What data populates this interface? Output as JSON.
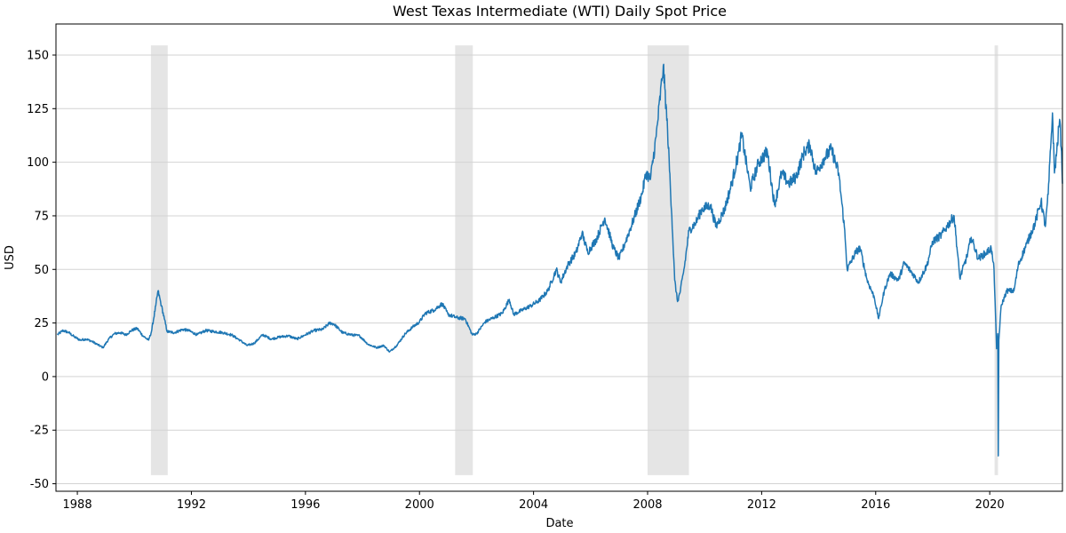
{
  "chart_data": {
    "type": "line",
    "title": "West Texas Intermediate (WTI) Daily Spot Price",
    "xlabel": "Date",
    "ylabel": "USD",
    "xlim": [
      1987.25,
      2022.55
    ],
    "ylim": [
      -53.5,
      164.5
    ],
    "x_ticks": [
      1988,
      1992,
      1996,
      2000,
      2004,
      2008,
      2012,
      2016,
      2020
    ],
    "y_ticks": [
      -50,
      -25,
      0,
      25,
      50,
      75,
      100,
      125,
      150
    ],
    "grid": "horizontal",
    "line_color": "#1f77b4",
    "shade_color": "#d3d3d3",
    "recession_shading": [
      {
        "start": 1990.58,
        "end": 1991.17,
        "ymin": -46,
        "ymax": 154.5
      },
      {
        "start": 2001.25,
        "end": 2001.87,
        "ymin": -46,
        "ymax": 154.5
      },
      {
        "start": 2008.0,
        "end": 2009.45,
        "ymin": -46,
        "ymax": 154.5
      },
      {
        "start": 2020.17,
        "end": 2020.29,
        "ymin": -46,
        "ymax": 154.5
      }
    ],
    "series": [
      {
        "points": [
          [
            1987.3,
            19.5
          ],
          [
            1987.5,
            21.5
          ],
          [
            1987.7,
            20.5
          ],
          [
            1987.9,
            18.5
          ],
          [
            1988.1,
            17.0
          ],
          [
            1988.3,
            17.5
          ],
          [
            1988.5,
            16.5
          ],
          [
            1988.7,
            15.0
          ],
          [
            1988.9,
            13.5
          ],
          [
            1989.1,
            17.5
          ],
          [
            1989.3,
            20.0
          ],
          [
            1989.5,
            20.5
          ],
          [
            1989.7,
            19.5
          ],
          [
            1989.9,
            21.5
          ],
          [
            1990.1,
            22.5
          ],
          [
            1990.3,
            19.0
          ],
          [
            1990.5,
            17.0
          ],
          [
            1990.6,
            21.0
          ],
          [
            1990.75,
            33.0
          ],
          [
            1990.83,
            40.0
          ],
          [
            1990.95,
            33.0
          ],
          [
            1991.05,
            27.0
          ],
          [
            1991.15,
            21.0
          ],
          [
            1991.4,
            20.5
          ],
          [
            1991.7,
            22.0
          ],
          [
            1991.9,
            21.5
          ],
          [
            1992.2,
            19.5
          ],
          [
            1992.5,
            21.5
          ],
          [
            1992.8,
            21.0
          ],
          [
            1993.1,
            20.5
          ],
          [
            1993.4,
            19.5
          ],
          [
            1993.7,
            17.0
          ],
          [
            1993.95,
            14.5
          ],
          [
            1994.2,
            15.5
          ],
          [
            1994.5,
            19.5
          ],
          [
            1994.8,
            17.5
          ],
          [
            1995.1,
            18.5
          ],
          [
            1995.4,
            19.0
          ],
          [
            1995.7,
            17.5
          ],
          [
            1996.0,
            19.5
          ],
          [
            1996.3,
            21.5
          ],
          [
            1996.6,
            22.0
          ],
          [
            1996.85,
            25.0
          ],
          [
            1997.0,
            24.5
          ],
          [
            1997.3,
            20.5
          ],
          [
            1997.6,
            19.5
          ],
          [
            1997.9,
            19.0
          ],
          [
            1998.2,
            15.0
          ],
          [
            1998.5,
            13.5
          ],
          [
            1998.75,
            14.5
          ],
          [
            1998.95,
            11.5
          ],
          [
            1999.2,
            14.5
          ],
          [
            1999.5,
            20.0
          ],
          [
            1999.75,
            23.0
          ],
          [
            2000.0,
            25.5
          ],
          [
            2000.2,
            29.5
          ],
          [
            2000.5,
            31.0
          ],
          [
            2000.8,
            34.0
          ],
          [
            2001.0,
            29.0
          ],
          [
            2001.3,
            27.5
          ],
          [
            2001.6,
            27.0
          ],
          [
            2001.85,
            19.5
          ],
          [
            2002.0,
            20.0
          ],
          [
            2002.3,
            25.5
          ],
          [
            2002.6,
            27.5
          ],
          [
            2002.9,
            29.5
          ],
          [
            2003.15,
            36.0
          ],
          [
            2003.3,
            29.0
          ],
          [
            2003.6,
            31.0
          ],
          [
            2003.9,
            33.0
          ],
          [
            2004.2,
            35.5
          ],
          [
            2004.5,
            40.0
          ],
          [
            2004.8,
            50.0
          ],
          [
            2004.95,
            44.0
          ],
          [
            2005.2,
            52.0
          ],
          [
            2005.5,
            58.0
          ],
          [
            2005.7,
            67.0
          ],
          [
            2005.9,
            58.0
          ],
          [
            2006.2,
            64.0
          ],
          [
            2006.5,
            74.0
          ],
          [
            2006.8,
            60.0
          ],
          [
            2007.0,
            55.0
          ],
          [
            2007.2,
            62.0
          ],
          [
            2007.5,
            73.0
          ],
          [
            2007.8,
            85.0
          ],
          [
            2007.95,
            95.0
          ],
          [
            2008.1,
            92.0
          ],
          [
            2008.3,
            112.0
          ],
          [
            2008.5,
            138.0
          ],
          [
            2008.55,
            145.0
          ],
          [
            2008.7,
            115.0
          ],
          [
            2008.85,
            75.0
          ],
          [
            2008.95,
            45.0
          ],
          [
            2009.05,
            35.0
          ],
          [
            2009.15,
            40.0
          ],
          [
            2009.3,
            52.0
          ],
          [
            2009.45,
            68.0
          ],
          [
            2009.7,
            72.0
          ],
          [
            2009.9,
            78.0
          ],
          [
            2010.2,
            80.0
          ],
          [
            2010.4,
            70.0
          ],
          [
            2010.7,
            78.0
          ],
          [
            2010.95,
            90.0
          ],
          [
            2011.2,
            105.0
          ],
          [
            2011.3,
            113.0
          ],
          [
            2011.6,
            88.0
          ],
          [
            2011.9,
            100.0
          ],
          [
            2012.2,
            105.0
          ],
          [
            2012.45,
            80.0
          ],
          [
            2012.7,
            95.0
          ],
          [
            2012.95,
            90.0
          ],
          [
            2013.2,
            93.0
          ],
          [
            2013.5,
            105.0
          ],
          [
            2013.7,
            108.0
          ],
          [
            2013.9,
            95.0
          ],
          [
            2014.2,
            102.0
          ],
          [
            2014.45,
            106.0
          ],
          [
            2014.7,
            95.0
          ],
          [
            2014.9,
            70.0
          ],
          [
            2015.0,
            50.0
          ],
          [
            2015.3,
            58.0
          ],
          [
            2015.45,
            60.0
          ],
          [
            2015.7,
            45.0
          ],
          [
            2015.95,
            37.0
          ],
          [
            2016.1,
            27.0
          ],
          [
            2016.3,
            40.0
          ],
          [
            2016.5,
            48.0
          ],
          [
            2016.8,
            45.0
          ],
          [
            2017.0,
            53.0
          ],
          [
            2017.3,
            48.0
          ],
          [
            2017.5,
            44.0
          ],
          [
            2017.8,
            52.0
          ],
          [
            2018.0,
            63.0
          ],
          [
            2018.3,
            66.0
          ],
          [
            2018.5,
            70.0
          ],
          [
            2018.75,
            75.0
          ],
          [
            2018.95,
            46.0
          ],
          [
            2019.2,
            56.0
          ],
          [
            2019.35,
            65.0
          ],
          [
            2019.6,
            55.0
          ],
          [
            2019.9,
            58.0
          ],
          [
            2020.05,
            60.0
          ],
          [
            2020.15,
            50.0
          ],
          [
            2020.2,
            30.0
          ],
          [
            2020.24,
            13.0
          ],
          [
            2020.28,
            20.0
          ],
          [
            2020.3,
            -37.0
          ],
          [
            2020.32,
            17.0
          ],
          [
            2020.4,
            33.0
          ],
          [
            2020.6,
            40.0
          ],
          [
            2020.85,
            40.0
          ],
          [
            2021.0,
            52.0
          ],
          [
            2021.3,
            62.0
          ],
          [
            2021.6,
            72.0
          ],
          [
            2021.8,
            82.0
          ],
          [
            2021.95,
            70.0
          ],
          [
            2022.05,
            85.0
          ],
          [
            2022.15,
            110.0
          ],
          [
            2022.2,
            123.0
          ],
          [
            2022.27,
            95.0
          ],
          [
            2022.35,
            105.0
          ],
          [
            2022.45,
            120.0
          ],
          [
            2022.52,
            105.0
          ],
          [
            2022.55,
            90.0
          ]
        ]
      }
    ]
  }
}
